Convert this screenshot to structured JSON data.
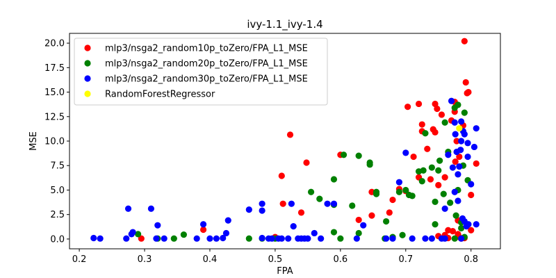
{
  "chart_data": {
    "type": "scatter",
    "title": "ivy-1.1_ivy-1.4",
    "xlabel": "FPA",
    "ylabel": "MSE",
    "xlim": [
      0.185,
      0.845
    ],
    "ylim": [
      -1.0,
      21.0
    ],
    "xticks": [
      "0.2",
      "0.3",
      "0.4",
      "0.5",
      "0.6",
      "0.7",
      "0.8"
    ],
    "yticks": [
      "0.0",
      "2.5",
      "5.0",
      "7.5",
      "10.0",
      "12.5",
      "15.0",
      "17.5",
      "20.0"
    ],
    "grid": false,
    "legend_position": "top-left",
    "series": [
      {
        "name": "mlp3/nsga2_random10p_toZero/FPA_L1_MSE",
        "color": "#ff0000",
        "points": [
          [
            0.295,
            0.05
          ],
          [
            0.39,
            0.95
          ],
          [
            0.5,
            0.2
          ],
          [
            0.51,
            6.45
          ],
          [
            0.512,
            3.6
          ],
          [
            0.523,
            10.65
          ],
          [
            0.54,
            2.7
          ],
          [
            0.548,
            7.8
          ],
          [
            0.6,
            8.6
          ],
          [
            0.628,
            1.95
          ],
          [
            0.648,
            4.8
          ],
          [
            0.648,
            2.4
          ],
          [
            0.675,
            2.7
          ],
          [
            0.68,
            4.0
          ],
          [
            0.69,
            5.1
          ],
          [
            0.7,
            4.9
          ],
          [
            0.703,
            13.5
          ],
          [
            0.712,
            8.4
          ],
          [
            0.72,
            13.8
          ],
          [
            0.72,
            6.3
          ],
          [
            0.725,
            11.7
          ],
          [
            0.725,
            11.0
          ],
          [
            0.733,
            9.2
          ],
          [
            0.738,
            6.1
          ],
          [
            0.742,
            11.2
          ],
          [
            0.745,
            13.8
          ],
          [
            0.745,
            10.9
          ],
          [
            0.748,
            13.3
          ],
          [
            0.75,
            5.5
          ],
          [
            0.75,
            0.3
          ],
          [
            0.755,
            12.7
          ],
          [
            0.76,
            6.3
          ],
          [
            0.76,
            0.4
          ],
          [
            0.765,
            0.9
          ],
          [
            0.765,
            0.1
          ],
          [
            0.77,
            12.1
          ],
          [
            0.772,
            0.8
          ],
          [
            0.775,
            14.0
          ],
          [
            0.775,
            13.0
          ],
          [
            0.776,
            7.9
          ],
          [
            0.778,
            10.0
          ],
          [
            0.78,
            1.9
          ],
          [
            0.78,
            0.5
          ],
          [
            0.782,
            8.4
          ],
          [
            0.782,
            0.2
          ],
          [
            0.785,
            11.3
          ],
          [
            0.788,
            11.6
          ],
          [
            0.79,
            20.2
          ],
          [
            0.792,
            16.0
          ],
          [
            0.794,
            14.9
          ],
          [
            0.796,
            15.0
          ],
          [
            0.8,
            4.5
          ],
          [
            0.808,
            7.7
          ],
          [
            0.79,
            0.1
          ],
          [
            0.785,
            0.05
          ],
          [
            0.8,
            0.9
          ]
        ]
      },
      {
        "name": "mlp3/nsga2_random20p_toZero/FPA_L1_MSE",
        "color": "#008000",
        "points": [
          [
            0.29,
            0.5
          ],
          [
            0.32,
            0.05
          ],
          [
            0.345,
            0.05
          ],
          [
            0.36,
            0.45
          ],
          [
            0.46,
            0.05
          ],
          [
            0.48,
            0.05
          ],
          [
            0.5,
            0.05
          ],
          [
            0.555,
            4.8
          ],
          [
            0.568,
            4.1
          ],
          [
            0.59,
            0.7
          ],
          [
            0.59,
            6.1
          ],
          [
            0.59,
            3.5
          ],
          [
            0.6,
            0.05
          ],
          [
            0.605,
            8.6
          ],
          [
            0.618,
            3.4
          ],
          [
            0.628,
            8.5
          ],
          [
            0.628,
            0.6
          ],
          [
            0.645,
            7.6
          ],
          [
            0.645,
            7.8
          ],
          [
            0.655,
            4.8
          ],
          [
            0.655,
            4.6
          ],
          [
            0.668,
            0.05
          ],
          [
            0.67,
            1.8
          ],
          [
            0.68,
            0.2
          ],
          [
            0.69,
            4.8
          ],
          [
            0.695,
            0.4
          ],
          [
            0.7,
            5.0
          ],
          [
            0.705,
            4.5
          ],
          [
            0.71,
            4.4
          ],
          [
            0.72,
            6.9
          ],
          [
            0.725,
            5.9
          ],
          [
            0.727,
            7.0
          ],
          [
            0.73,
            10.8
          ],
          [
            0.74,
            7.3
          ],
          [
            0.745,
            3.8
          ],
          [
            0.745,
            1.5
          ],
          [
            0.75,
            7.0
          ],
          [
            0.752,
            8.0
          ],
          [
            0.758,
            4.6
          ],
          [
            0.76,
            11.9
          ],
          [
            0.765,
            8.9
          ],
          [
            0.768,
            3.7
          ],
          [
            0.775,
            13.4
          ],
          [
            0.777,
            2.4
          ],
          [
            0.78,
            13.7
          ],
          [
            0.78,
            5.0
          ],
          [
            0.785,
            1.1
          ],
          [
            0.785,
            1.7
          ],
          [
            0.79,
            12.9
          ],
          [
            0.79,
            0.2
          ],
          [
            0.795,
            6.0
          ],
          [
            0.788,
            7.5
          ],
          [
            0.775,
            0.05
          ]
        ]
      },
      {
        "name": "mlp3/nsga2_random30p_toZero/FPA_L1_MSE",
        "color": "#0000ff",
        "points": [
          [
            0.222,
            0.1
          ],
          [
            0.232,
            0.05
          ],
          [
            0.272,
            0.05
          ],
          [
            0.275,
            3.1
          ],
          [
            0.28,
            0.5
          ],
          [
            0.282,
            0.7
          ],
          [
            0.31,
            3.1
          ],
          [
            0.318,
            0.05
          ],
          [
            0.32,
            1.4
          ],
          [
            0.33,
            0.05
          ],
          [
            0.38,
            0.05
          ],
          [
            0.39,
            1.5
          ],
          [
            0.4,
            0.05
          ],
          [
            0.41,
            0.05
          ],
          [
            0.42,
            0.1
          ],
          [
            0.425,
            0.6
          ],
          [
            0.428,
            1.9
          ],
          [
            0.46,
            3.0
          ],
          [
            0.48,
            3.6
          ],
          [
            0.48,
            2.9
          ],
          [
            0.48,
            0.1
          ],
          [
            0.49,
            0.05
          ],
          [
            0.495,
            0.05
          ],
          [
            0.505,
            0.05
          ],
          [
            0.51,
            0.05
          ],
          [
            0.52,
            0.05
          ],
          [
            0.525,
            3.6
          ],
          [
            0.528,
            1.3
          ],
          [
            0.535,
            0.05
          ],
          [
            0.54,
            0.05
          ],
          [
            0.545,
            0.05
          ],
          [
            0.55,
            0.05
          ],
          [
            0.56,
            0.6
          ],
          [
            0.57,
            0.05
          ],
          [
            0.58,
            3.6
          ],
          [
            0.59,
            3.6
          ],
          [
            0.625,
            0.05
          ],
          [
            0.635,
            1.4
          ],
          [
            0.67,
            0.05
          ],
          [
            0.68,
            0.05
          ],
          [
            0.69,
            5.8
          ],
          [
            0.7,
            8.8
          ],
          [
            0.71,
            0.05
          ],
          [
            0.73,
            0.05
          ],
          [
            0.74,
            0.05
          ],
          [
            0.755,
            0.05
          ],
          [
            0.76,
            0.05
          ],
          [
            0.76,
            3.1
          ],
          [
            0.765,
            8.6
          ],
          [
            0.77,
            14.1
          ],
          [
            0.772,
            7.3
          ],
          [
            0.775,
            4.8
          ],
          [
            0.775,
            11.9
          ],
          [
            0.776,
            10.7
          ],
          [
            0.778,
            8.9
          ],
          [
            0.78,
            6.6
          ],
          [
            0.78,
            3.9
          ],
          [
            0.782,
            7.4
          ],
          [
            0.784,
            9.1
          ],
          [
            0.785,
            12.0
          ],
          [
            0.785,
            10.0
          ],
          [
            0.787,
            2.1
          ],
          [
            0.788,
            11.0
          ],
          [
            0.79,
            10.7
          ],
          [
            0.79,
            1.8
          ],
          [
            0.795,
            9.8
          ],
          [
            0.795,
            8.4
          ],
          [
            0.8,
            5.6
          ],
          [
            0.805,
            9.4
          ],
          [
            0.808,
            11.3
          ],
          [
            0.808,
            1.5
          ],
          [
            0.793,
            1.3
          ],
          [
            0.796,
            1.5
          ],
          [
            0.785,
            0.05
          ]
        ]
      },
      {
        "name": "RandomForestRegressor",
        "color": "#ffff00",
        "points": [
          [
            0.782,
            11.3
          ]
        ]
      }
    ]
  }
}
